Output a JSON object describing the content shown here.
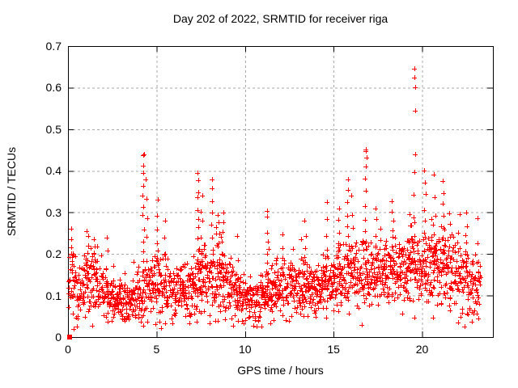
{
  "page": {
    "background": "#ffffff"
  },
  "colors": {
    "marker": "#ff0000",
    "axis": "#000000",
    "grid": "#a8a8a8",
    "background": "#ffffff",
    "text": "#000000"
  },
  "chart_data": {
    "type": "scatter",
    "title": "Day 202 of 2022, SRMTID for receiver riga",
    "xlabel": "GPS time / hours",
    "ylabel": "SRMTID / TECUs",
    "xlim": [
      0,
      24
    ],
    "ylim": [
      0,
      0.7
    ],
    "xticks": [
      0,
      5,
      10,
      15,
      20
    ],
    "xtick_labels": [
      "0",
      "5",
      "10",
      "15",
      "20"
    ],
    "yticks": [
      0,
      0.1,
      0.2,
      0.3,
      0.4,
      0.5,
      0.6,
      0.7
    ],
    "ytick_labels": [
      "0",
      "0.1",
      "0.2",
      "0.3",
      "0.4",
      "0.5",
      "0.6",
      "0.7"
    ],
    "grid": true,
    "legend": "none",
    "marker": {
      "shape": "plus",
      "color": "#ff0000",
      "size": 7
    },
    "series_name": "SRMTID",
    "data_time_span_hours": [
      0.04,
      23.3
    ],
    "seed": 7,
    "envelope": [
      [
        0,
        0.115,
        0.04
      ],
      [
        0.3,
        0.13,
        0.05
      ],
      [
        0.7,
        0.1,
        0.035
      ],
      [
        1.1,
        0.13,
        0.05
      ],
      [
        1.6,
        0.125,
        0.045
      ],
      [
        2,
        0.105,
        0.035
      ],
      [
        2.5,
        0.1,
        0.03
      ],
      [
        3,
        0.09,
        0.03
      ],
      [
        3.5,
        0.085,
        0.03
      ],
      [
        4,
        0.095,
        0.035
      ],
      [
        4.5,
        0.115,
        0.04
      ],
      [
        5,
        0.125,
        0.045
      ],
      [
        5.6,
        0.125,
        0.04
      ],
      [
        6,
        0.105,
        0.035
      ],
      [
        6.5,
        0.11,
        0.035
      ],
      [
        7,
        0.115,
        0.04
      ],
      [
        7.5,
        0.145,
        0.05
      ],
      [
        8,
        0.15,
        0.05
      ],
      [
        8.6,
        0.155,
        0.05
      ],
      [
        9,
        0.125,
        0.04
      ],
      [
        9.5,
        0.105,
        0.035
      ],
      [
        10,
        0.09,
        0.03
      ],
      [
        10.6,
        0.085,
        0.03
      ],
      [
        11,
        0.095,
        0.035
      ],
      [
        11.5,
        0.105,
        0.035
      ],
      [
        12,
        0.12,
        0.035
      ],
      [
        12.6,
        0.125,
        0.04
      ],
      [
        13,
        0.12,
        0.04
      ],
      [
        13.5,
        0.125,
        0.04
      ],
      [
        14,
        0.115,
        0.04
      ],
      [
        14.5,
        0.13,
        0.04
      ],
      [
        15,
        0.14,
        0.045
      ],
      [
        15.6,
        0.15,
        0.05
      ],
      [
        16,
        0.15,
        0.045
      ],
      [
        16.6,
        0.16,
        0.05
      ],
      [
        17,
        0.15,
        0.045
      ],
      [
        17.5,
        0.155,
        0.045
      ],
      [
        18,
        0.15,
        0.045
      ],
      [
        18.5,
        0.16,
        0.05
      ],
      [
        19,
        0.16,
        0.05
      ],
      [
        19.5,
        0.17,
        0.05
      ],
      [
        20,
        0.16,
        0.05
      ],
      [
        20.5,
        0.17,
        0.05
      ],
      [
        21,
        0.17,
        0.05
      ],
      [
        21.5,
        0.16,
        0.05
      ],
      [
        22,
        0.15,
        0.05
      ],
      [
        22.5,
        0.14,
        0.045
      ],
      [
        23,
        0.12,
        0.04
      ],
      [
        23.3,
        0.125,
        0.04
      ]
    ],
    "spikes": [
      [
        0.2,
        0.26,
        5
      ],
      [
        1.1,
        0.26,
        6
      ],
      [
        1.45,
        0.24,
        5
      ],
      [
        2.2,
        0.24,
        4
      ],
      [
        4.25,
        0.44,
        13
      ],
      [
        4.45,
        0.38,
        6
      ],
      [
        5.05,
        0.33,
        6
      ],
      [
        5.5,
        0.28,
        4
      ],
      [
        7.35,
        0.4,
        11
      ],
      [
        7.55,
        0.34,
        6
      ],
      [
        8.15,
        0.38,
        8
      ],
      [
        8.5,
        0.3,
        5
      ],
      [
        8.75,
        0.3,
        6
      ],
      [
        9.6,
        0.25,
        3
      ],
      [
        11.25,
        0.31,
        8
      ],
      [
        12.1,
        0.25,
        4
      ],
      [
        13.4,
        0.28,
        5
      ],
      [
        14.6,
        0.33,
        5
      ],
      [
        15.3,
        0.31,
        6
      ],
      [
        15.8,
        0.38,
        8
      ],
      [
        16.05,
        0.34,
        5
      ],
      [
        16.8,
        0.45,
        9
      ],
      [
        17.4,
        0.31,
        5
      ],
      [
        18.35,
        0.33,
        7
      ],
      [
        19.3,
        0.3,
        4
      ],
      [
        19.55,
        0.44,
        6
      ],
      [
        20.15,
        0.4,
        8
      ],
      [
        20.7,
        0.39,
        5
      ],
      [
        21.2,
        0.38,
        7
      ],
      [
        21.55,
        0.3,
        5
      ],
      [
        22.5,
        0.3,
        6
      ],
      [
        23.15,
        0.29,
        3
      ]
    ],
    "notable_points": [
      [
        19.55,
        0.645
      ],
      [
        19.56,
        0.625
      ],
      [
        19.62,
        0.6
      ],
      [
        19.6,
        0.545
      ],
      [
        16.8,
        0.451
      ],
      [
        16.85,
        0.432
      ],
      [
        4.25,
        0.438
      ]
    ],
    "origin_marker": {
      "x": 0.08,
      "y": 0.0,
      "shape": "filled-square",
      "size": 7
    }
  }
}
